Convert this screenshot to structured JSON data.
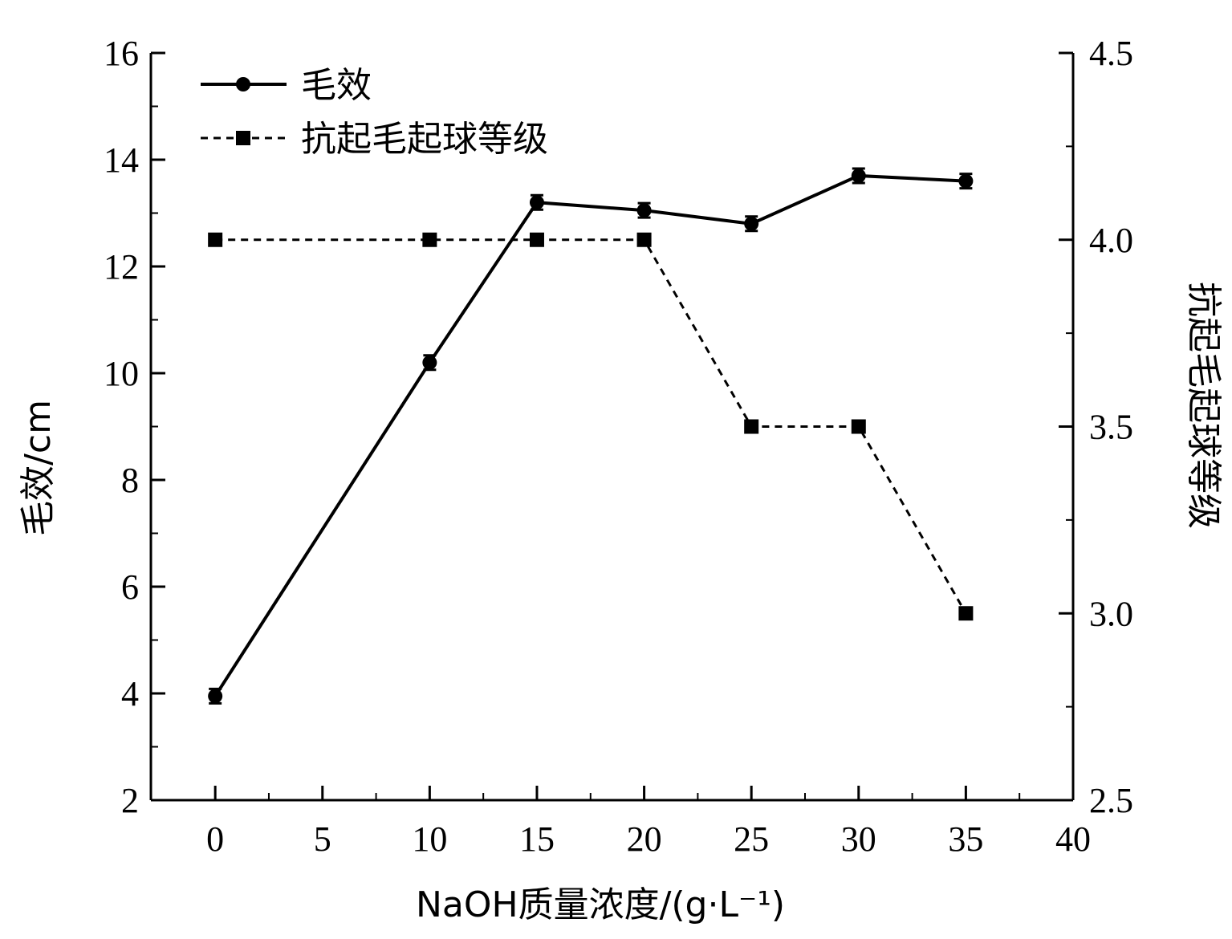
{
  "chart_data": {
    "type": "line",
    "xlabel": "NaOH质量浓度/(g·L⁻¹)",
    "ylabel": "毛效/cm",
    "y2label": "抗起毛起球等级",
    "xlim": [
      -3,
      40
    ],
    "ylim": [
      2,
      16
    ],
    "y2lim": [
      2.5,
      4.5
    ],
    "xticks": [
      "0",
      "5",
      "10",
      "15",
      "20",
      "25",
      "30",
      "35",
      "40"
    ],
    "yticks": [
      "2",
      "4",
      "6",
      "8",
      "10",
      "12",
      "14",
      "16"
    ],
    "y2ticks": [
      "2.5",
      "3.0",
      "3.5",
      "4.0",
      "4.5"
    ],
    "grid": false,
    "legend_position": "top-left",
    "series": [
      {
        "name": "毛效",
        "axis": "left",
        "marker": "circle",
        "line_style": "solid",
        "x": [
          0,
          10,
          15,
          20,
          25,
          30,
          35
        ],
        "y": [
          3.95,
          10.2,
          13.2,
          13.05,
          12.8,
          13.7,
          13.6
        ]
      },
      {
        "name": "抗起毛起球等级",
        "axis": "right",
        "marker": "square",
        "line_style": "dashed",
        "x": [
          0,
          10,
          15,
          20,
          25,
          30,
          35
        ],
        "y": [
          4.0,
          4.0,
          4.0,
          4.0,
          3.5,
          3.5,
          3.0
        ]
      }
    ]
  }
}
